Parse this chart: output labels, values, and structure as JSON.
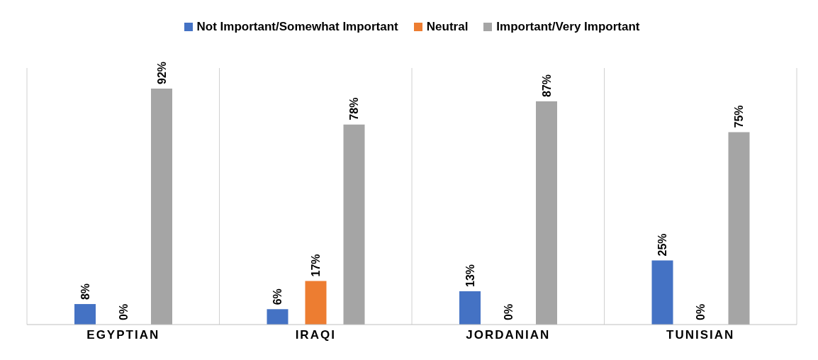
{
  "chart_data": {
    "type": "bar",
    "categories": [
      "EGYPTIAN",
      "IRAQI",
      "JORDANIAN",
      "TUNISIAN"
    ],
    "series": [
      {
        "name": "Not Important/Somewhat Important",
        "color": "#4472c4",
        "values": [
          8,
          6,
          13,
          25
        ],
        "value_labels": [
          "8%",
          "6%",
          "13%",
          "25%"
        ]
      },
      {
        "name": "Neutral",
        "color": "#ed7d31",
        "values": [
          0,
          17,
          0,
          0
        ],
        "value_labels": [
          "0%",
          "17%",
          "0%",
          "0%"
        ]
      },
      {
        "name": "Important/Very Important",
        "color": "#a5a5a5",
        "values": [
          92,
          78,
          87,
          75
        ],
        "value_labels": [
          "92%",
          "78%",
          "87%",
          "75%"
        ]
      }
    ],
    "ylim": [
      0,
      100
    ],
    "tick_labels": "x",
    "grid": "x",
    "legend": "top"
  }
}
